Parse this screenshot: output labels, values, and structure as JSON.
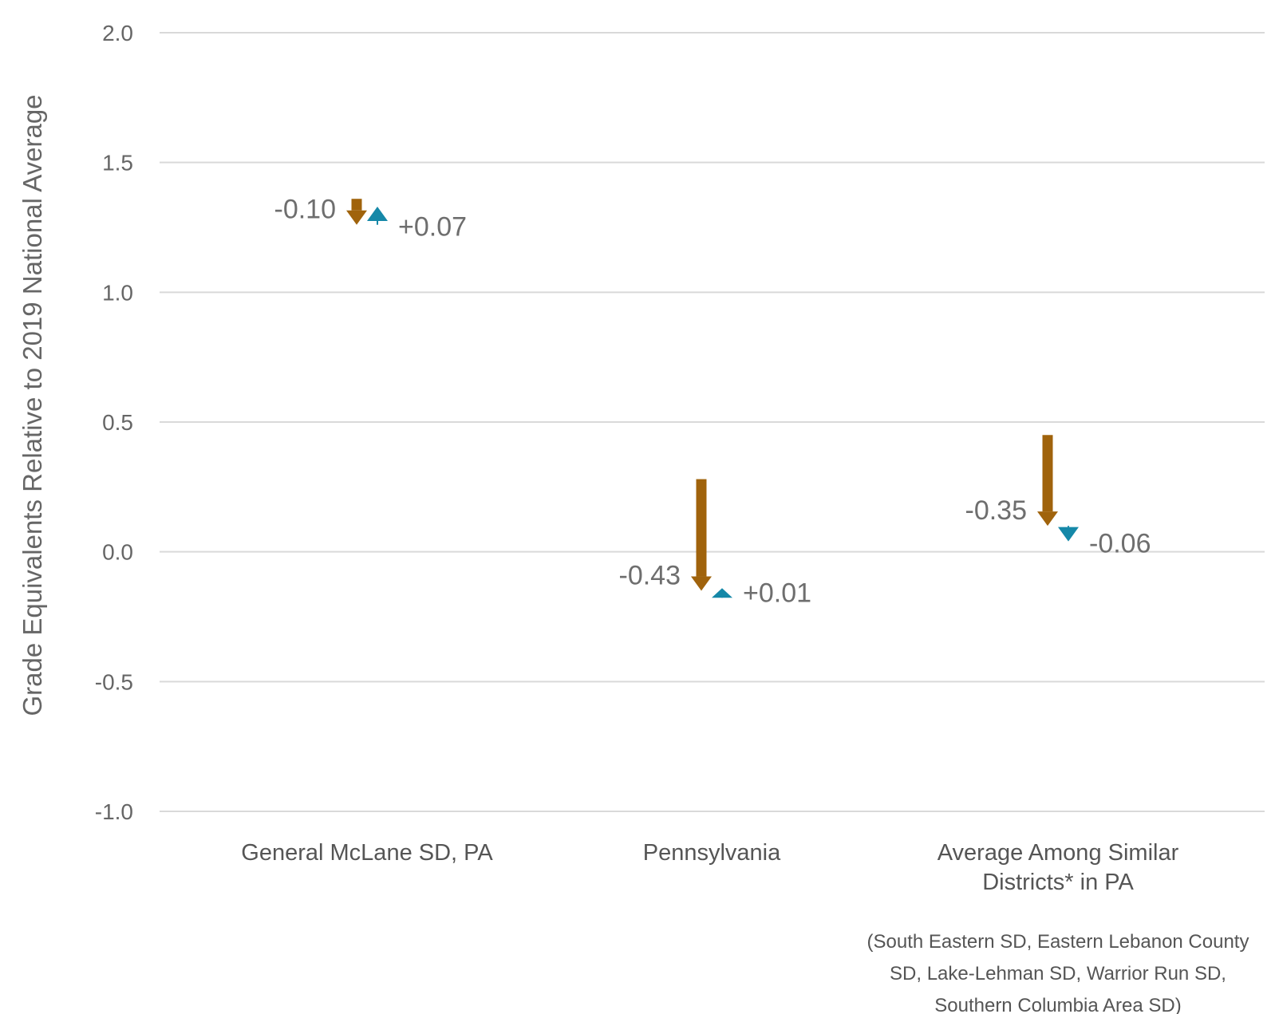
{
  "chart_data": {
    "type": "scatter",
    "ylabel": "Grade Equivalents Relative to 2019 National Average",
    "ylim": [
      -1.0,
      2.0
    ],
    "yticks": [
      2.0,
      1.5,
      1.0,
      0.5,
      0.0,
      -0.5,
      -1.0
    ],
    "ytick_labels": [
      "2.0",
      "1.5",
      "1.0",
      "0.5",
      "0.0",
      "-0.5",
      "-1.0"
    ],
    "grid": true,
    "colors": {
      "first_change": "#a0630c",
      "second_change": "#1588a8"
    },
    "categories": [
      {
        "label_lines": [
          "General McLane SD, PA"
        ],
        "note_lines": []
      },
      {
        "label_lines": [
          "Pennsylvania"
        ],
        "note_lines": []
      },
      {
        "label_lines": [
          "Average Among Similar",
          "Districts* in PA"
        ],
        "note_lines": [
          "(South Eastern SD, Eastern Lebanon County",
          "SD, Lake-Lehman SD, Warrior Run SD,",
          "Southern Columbia Area SD)"
        ]
      }
    ],
    "series": [
      {
        "color": "#a0630c",
        "marker": "arrow",
        "points": [
          {
            "start": 1.36,
            "end": 1.26,
            "change": -0.1,
            "label": "-0.10"
          },
          {
            "start": 0.28,
            "end": -0.15,
            "change": -0.43,
            "label": "-0.43"
          },
          {
            "start": 0.45,
            "end": 0.1,
            "change": -0.35,
            "label": "-0.35"
          }
        ]
      },
      {
        "color": "#1588a8",
        "marker": "triangle",
        "points": [
          {
            "start": 1.26,
            "end": 1.33,
            "change": 0.07,
            "label": "+0.07"
          },
          {
            "start": -0.15,
            "end": -0.14,
            "change": 0.01,
            "label": "+0.01"
          },
          {
            "start": 0.1,
            "end": 0.04,
            "change": -0.06,
            "label": "-0.06"
          }
        ]
      }
    ]
  }
}
